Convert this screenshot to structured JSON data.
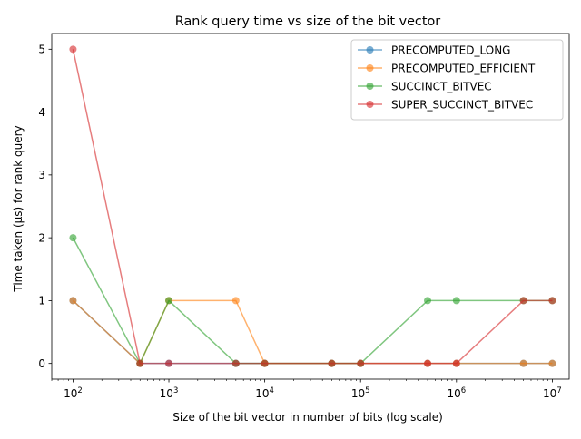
{
  "chart_data": {
    "type": "line",
    "title": "Rank query time vs size of the bit vector",
    "xlabel": "Size of the bit vector in number of bits (log scale)",
    "ylabel": "Time taken (µs) for rank query",
    "x_scale": "log",
    "xlim": [
      60,
      15000000
    ],
    "ylim": [
      -0.25,
      5.25
    ],
    "x_ticks": [
      {
        "value": 100,
        "base": "10",
        "exp": "2"
      },
      {
        "value": 1000,
        "base": "10",
        "exp": "3"
      },
      {
        "value": 10000,
        "base": "10",
        "exp": "4"
      },
      {
        "value": 100000,
        "base": "10",
        "exp": "5"
      },
      {
        "value": 1000000,
        "base": "10",
        "exp": "6"
      },
      {
        "value": 10000000,
        "base": "10",
        "exp": "7"
      }
    ],
    "y_ticks": [
      0,
      1,
      2,
      3,
      4,
      5
    ],
    "grid": false,
    "legend_position": "top-right",
    "x": [
      100,
      500,
      1000,
      5000,
      10000,
      50000,
      100000,
      500000,
      1000000,
      5000000,
      10000000
    ],
    "series": [
      {
        "name": "PRECOMPUTED_LONG",
        "color": "#1f77b4",
        "values": [
          1,
          0,
          0,
          0,
          0,
          0,
          0,
          0,
          0,
          0,
          0
        ]
      },
      {
        "name": "PRECOMPUTED_EFFICIENT",
        "color": "#ff7f0e",
        "values": [
          1,
          0,
          1,
          1,
          0,
          0,
          0,
          0,
          0,
          0,
          0
        ]
      },
      {
        "name": "SUCCINCT_BITVEC",
        "color": "#2ca02c",
        "values": [
          2,
          0,
          1,
          0,
          0,
          0,
          0,
          1,
          1,
          1,
          1
        ]
      },
      {
        "name": "SUPER_SUCCINCT_BITVEC",
        "color": "#d62728",
        "values": [
          5,
          0,
          0,
          0,
          0,
          0,
          0,
          0,
          0,
          1,
          1
        ]
      }
    ]
  }
}
